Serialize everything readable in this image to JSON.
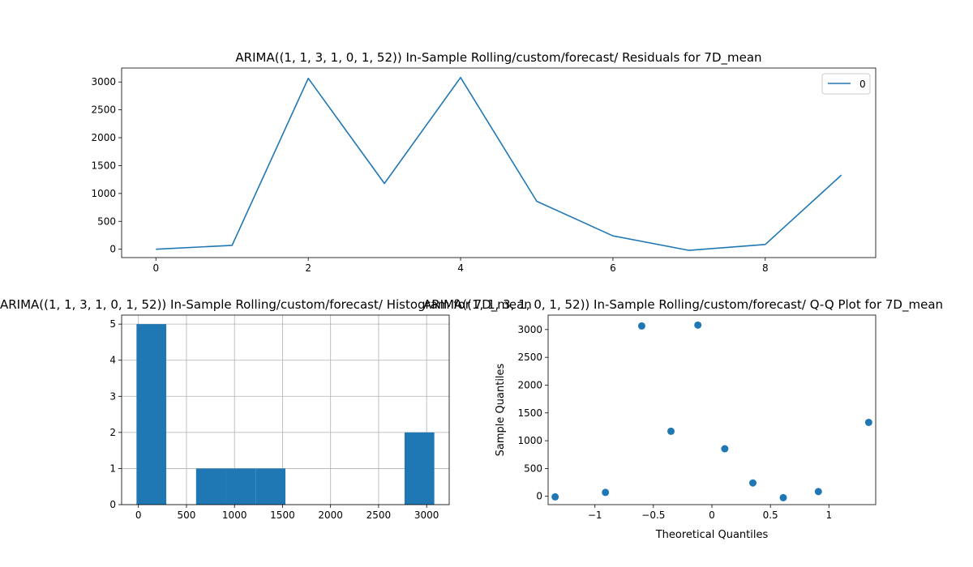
{
  "chart_data": [
    {
      "type": "line",
      "title": "ARIMA((1, 1, 3, 1, 0, 1, 52)) In-Sample Rolling/custom/forecast/ Residuals for 7D_mean",
      "xlabel": "",
      "ylabel": "",
      "x": [
        0,
        1,
        2,
        3,
        4,
        5,
        6,
        7,
        8,
        9
      ],
      "series": [
        {
          "name": "0",
          "values": [
            0,
            70,
            3065,
            1180,
            3080,
            860,
            240,
            -20,
            85,
            1330
          ]
        }
      ],
      "xlim": [
        -0.45,
        9.45
      ],
      "ylim": [
        -150,
        3250
      ],
      "xticks": [
        0,
        2,
        4,
        6,
        8
      ],
      "yticks": [
        0,
        500,
        1000,
        1500,
        2000,
        2500,
        3000
      ],
      "color": "#1f77b4",
      "legend": "top-right",
      "grid": false
    },
    {
      "type": "bar",
      "title": "ARIMA((1, 1, 3, 1, 0, 1, 52)) In-Sample Rolling/custom/forecast/ Histogram for 7D_mean",
      "xlabel": "",
      "ylabel": "",
      "bins": [
        {
          "from": -20,
          "to": 290,
          "count": 5
        },
        {
          "from": 290,
          "to": 600,
          "count": 0
        },
        {
          "from": 600,
          "to": 910,
          "count": 1
        },
        {
          "from": 910,
          "to": 1220,
          "count": 1
        },
        {
          "from": 1220,
          "to": 1530,
          "count": 1
        },
        {
          "from": 1530,
          "to": 1840,
          "count": 0
        },
        {
          "from": 1840,
          "to": 2150,
          "count": 0
        },
        {
          "from": 2150,
          "to": 2460,
          "count": 0
        },
        {
          "from": 2460,
          "to": 2770,
          "count": 0
        },
        {
          "from": 2770,
          "to": 3080,
          "count": 2
        }
      ],
      "xlim": [
        -175,
        3235
      ],
      "ylim": [
        0,
        5.25
      ],
      "xticks": [
        0,
        500,
        1000,
        1500,
        2000,
        2500,
        3000
      ],
      "yticks": [
        0,
        1,
        2,
        3,
        4,
        5
      ],
      "color": "#1f77b4",
      "grid": true
    },
    {
      "type": "scatter",
      "title": "ARIMA((1, 1, 3, 1, 0, 1, 52)) In-Sample Rolling/custom/forecast/ Q-Q Plot for 7D_mean",
      "xlabel": "Theoretical Quantiles",
      "ylabel": "Sample Quantiles",
      "points": [
        {
          "x": -1.34,
          "y": -10
        },
        {
          "x": -0.91,
          "y": 70
        },
        {
          "x": -0.6,
          "y": 3065
        },
        {
          "x": -0.35,
          "y": 1170
        },
        {
          "x": -0.12,
          "y": 3080
        },
        {
          "x": 0.11,
          "y": 855
        },
        {
          "x": 0.35,
          "y": 240
        },
        {
          "x": 0.61,
          "y": -25
        },
        {
          "x": 0.91,
          "y": 85
        },
        {
          "x": 1.34,
          "y": 1330
        }
      ],
      "xlim": [
        -1.4,
        1.4
      ],
      "ylim": [
        -150,
        3260
      ],
      "xticks": [
        -1.0,
        -0.5,
        0.0,
        0.5,
        1.0
      ],
      "yticks": [
        0,
        500,
        1000,
        1500,
        2000,
        2500,
        3000
      ],
      "color": "#1f77b4",
      "grid": false
    }
  ]
}
